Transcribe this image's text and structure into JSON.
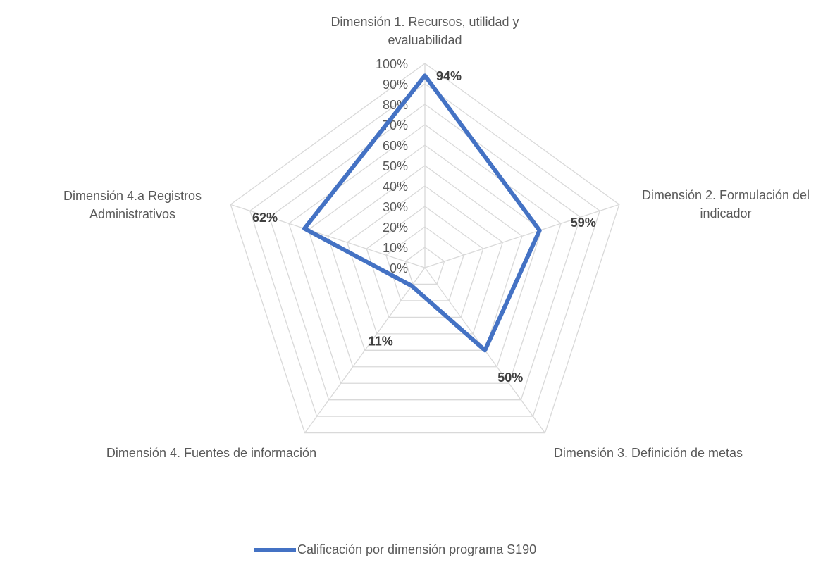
{
  "chart_data": {
    "type": "radar",
    "categories": [
      "Dimensión 1. Recursos, utilidad y evaluabilidad",
      "Dimensión 2. Formulación del indicador",
      "Dimensión 3. Definición de metas",
      "Dimensión 4. Fuentes de información",
      "Dimensión 4.a Registros Administrativos"
    ],
    "series": [
      {
        "name": "Calificación por dimensión  programa S190",
        "color": "#4472c4",
        "values": [
          94,
          59,
          50,
          11,
          62
        ],
        "value_labels": [
          "94%",
          "59%",
          "50%",
          "11%",
          "62%"
        ]
      }
    ],
    "ylim": [
      0,
      100
    ],
    "yticks": [
      {
        "value": 0,
        "label": "0%"
      },
      {
        "value": 10,
        "label": "10%"
      },
      {
        "value": 20,
        "label": "20%"
      },
      {
        "value": 30,
        "label": "30%"
      },
      {
        "value": 40,
        "label": "40%"
      },
      {
        "value": 50,
        "label": "50%"
      },
      {
        "value": 60,
        "label": "60%"
      },
      {
        "value": 70,
        "label": "70%"
      },
      {
        "value": 80,
        "label": "80%"
      },
      {
        "value": 90,
        "label": "90%"
      },
      {
        "value": 100,
        "label": "100%"
      }
    ],
    "grid": true,
    "legend": "bottom"
  }
}
